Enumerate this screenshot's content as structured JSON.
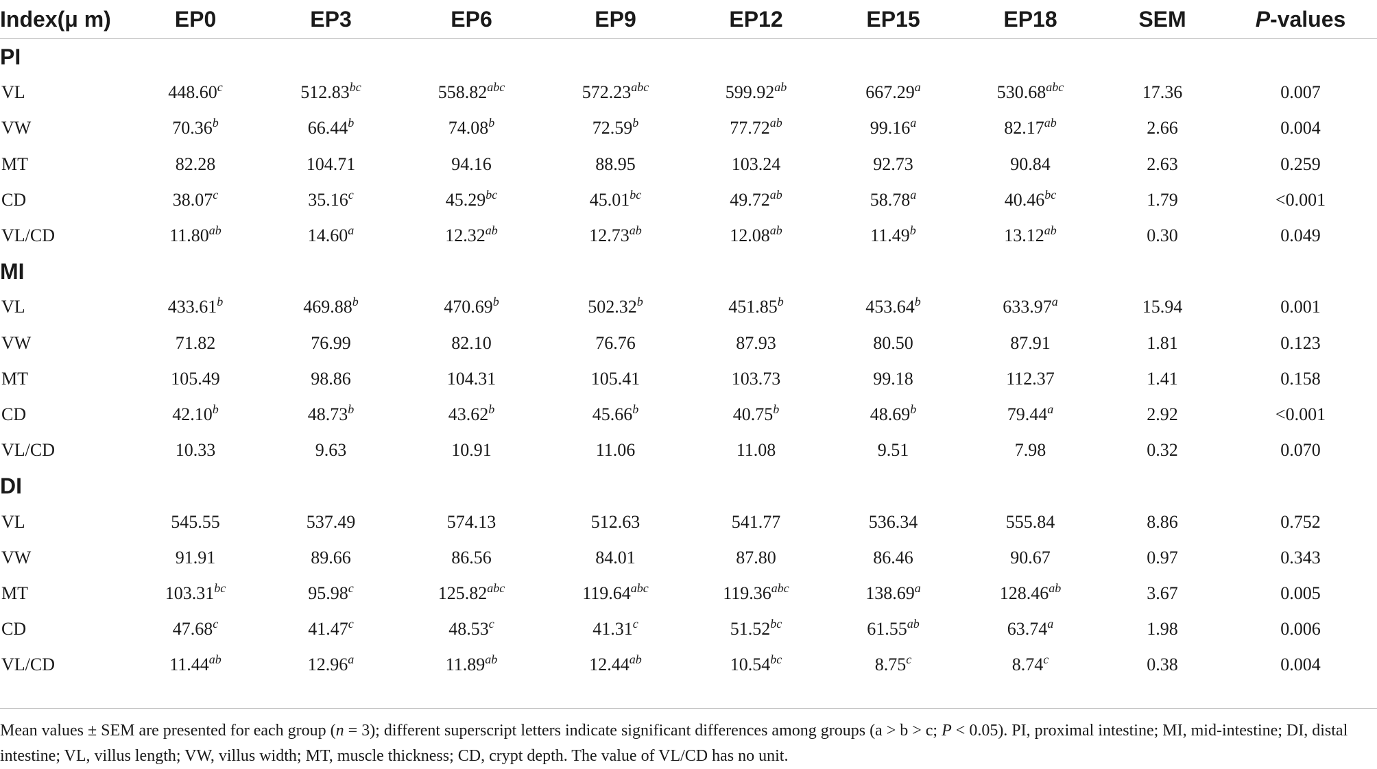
{
  "table": {
    "columns": [
      "Index(μ m)",
      "EP0",
      "EP3",
      "EP6",
      "EP9",
      "EP12",
      "EP15",
      "EP18",
      "SEM",
      "P-values"
    ],
    "sections": [
      {
        "name": "PI",
        "rows": [
          {
            "label": "VL",
            "cells": [
              [
                "448.60",
                "c"
              ],
              [
                "512.83",
                "bc"
              ],
              [
                "558.82",
                "abc"
              ],
              [
                "572.23",
                "abc"
              ],
              [
                "599.92",
                "ab"
              ],
              [
                "667.29",
                "a"
              ],
              [
                "530.68",
                "abc"
              ]
            ],
            "sem": "17.36",
            "p": "0.007"
          },
          {
            "label": "VW",
            "cells": [
              [
                "70.36",
                "b"
              ],
              [
                "66.44",
                "b"
              ],
              [
                "74.08",
                "b"
              ],
              [
                "72.59",
                "b"
              ],
              [
                "77.72",
                "ab"
              ],
              [
                "99.16",
                "a"
              ],
              [
                "82.17",
                "ab"
              ]
            ],
            "sem": "2.66",
            "p": "0.004"
          },
          {
            "label": "MT",
            "cells": [
              [
                "82.28",
                ""
              ],
              [
                "104.71",
                ""
              ],
              [
                "94.16",
                ""
              ],
              [
                "88.95",
                ""
              ],
              [
                "103.24",
                ""
              ],
              [
                "92.73",
                ""
              ],
              [
                "90.84",
                ""
              ]
            ],
            "sem": "2.63",
            "p": "0.259"
          },
          {
            "label": "CD",
            "cells": [
              [
                "38.07",
                "c"
              ],
              [
                "35.16",
                "c"
              ],
              [
                "45.29",
                "bc"
              ],
              [
                "45.01",
                "bc"
              ],
              [
                "49.72",
                "ab"
              ],
              [
                "58.78",
                "a"
              ],
              [
                "40.46",
                "bc"
              ]
            ],
            "sem": "1.79",
            "p": "<0.001"
          },
          {
            "label": "VL/CD",
            "cells": [
              [
                "11.80",
                "ab"
              ],
              [
                "14.60",
                "a"
              ],
              [
                "12.32",
                "ab"
              ],
              [
                "12.73",
                "ab"
              ],
              [
                "12.08",
                "ab"
              ],
              [
                "11.49",
                "b"
              ],
              [
                "13.12",
                "ab"
              ]
            ],
            "sem": "0.30",
            "p": "0.049"
          }
        ]
      },
      {
        "name": "MI",
        "rows": [
          {
            "label": "VL",
            "cells": [
              [
                "433.61",
                "b"
              ],
              [
                "469.88",
                "b"
              ],
              [
                "470.69",
                "b"
              ],
              [
                "502.32",
                "b"
              ],
              [
                "451.85",
                "b"
              ],
              [
                "453.64",
                "b"
              ],
              [
                "633.97",
                "a"
              ]
            ],
            "sem": "15.94",
            "p": "0.001"
          },
          {
            "label": "VW",
            "cells": [
              [
                "71.82",
                ""
              ],
              [
                "76.99",
                ""
              ],
              [
                "82.10",
                ""
              ],
              [
                "76.76",
                ""
              ],
              [
                "87.93",
                ""
              ],
              [
                "80.50",
                ""
              ],
              [
                "87.91",
                ""
              ]
            ],
            "sem": "1.81",
            "p": "0.123"
          },
          {
            "label": "MT",
            "cells": [
              [
                "105.49",
                ""
              ],
              [
                "98.86",
                ""
              ],
              [
                "104.31",
                ""
              ],
              [
                "105.41",
                ""
              ],
              [
                "103.73",
                ""
              ],
              [
                "99.18",
                ""
              ],
              [
                "112.37",
                ""
              ]
            ],
            "sem": "1.41",
            "p": "0.158"
          },
          {
            "label": "CD",
            "cells": [
              [
                "42.10",
                "b"
              ],
              [
                "48.73",
                "b"
              ],
              [
                "43.62",
                "b"
              ],
              [
                "45.66",
                "b"
              ],
              [
                "40.75",
                "b"
              ],
              [
                "48.69",
                "b"
              ],
              [
                "79.44",
                "a"
              ]
            ],
            "sem": "2.92",
            "p": "<0.001"
          },
          {
            "label": "VL/CD",
            "cells": [
              [
                "10.33",
                ""
              ],
              [
                "9.63",
                ""
              ],
              [
                "10.91",
                ""
              ],
              [
                "11.06",
                ""
              ],
              [
                "11.08",
                ""
              ],
              [
                "9.51",
                ""
              ],
              [
                "7.98",
                ""
              ]
            ],
            "sem": "0.32",
            "p": "0.070"
          }
        ]
      },
      {
        "name": "DI",
        "rows": [
          {
            "label": "VL",
            "cells": [
              [
                "545.55",
                ""
              ],
              [
                "537.49",
                ""
              ],
              [
                "574.13",
                ""
              ],
              [
                "512.63",
                ""
              ],
              [
                "541.77",
                ""
              ],
              [
                "536.34",
                ""
              ],
              [
                "555.84",
                ""
              ]
            ],
            "sem": "8.86",
            "p": "0.752"
          },
          {
            "label": "VW",
            "cells": [
              [
                "91.91",
                ""
              ],
              [
                "89.66",
                ""
              ],
              [
                "86.56",
                ""
              ],
              [
                "84.01",
                ""
              ],
              [
                "87.80",
                ""
              ],
              [
                "86.46",
                ""
              ],
              [
                "90.67",
                ""
              ]
            ],
            "sem": "0.97",
            "p": "0.343"
          },
          {
            "label": "MT",
            "cells": [
              [
                "103.31",
                "bc"
              ],
              [
                "95.98",
                "c"
              ],
              [
                "125.82",
                "abc"
              ],
              [
                "119.64",
                "abc"
              ],
              [
                "119.36",
                "abc"
              ],
              [
                "138.69",
                "a"
              ],
              [
                "128.46",
                "ab"
              ]
            ],
            "sem": "3.67",
            "p": "0.005"
          },
          {
            "label": "CD",
            "cells": [
              [
                "47.68",
                "c"
              ],
              [
                "41.47",
                "c"
              ],
              [
                "48.53",
                "c"
              ],
              [
                "41.31",
                "c"
              ],
              [
                "51.52",
                "bc"
              ],
              [
                "61.55",
                "ab"
              ],
              [
                "63.74",
                "a"
              ]
            ],
            "sem": "1.98",
            "p": "0.006"
          },
          {
            "label": "VL/CD",
            "cells": [
              [
                "11.44",
                "ab"
              ],
              [
                "12.96",
                "a"
              ],
              [
                "11.89",
                "ab"
              ],
              [
                "12.44",
                "ab"
              ],
              [
                "10.54",
                "bc"
              ],
              [
                "8.75",
                "c"
              ],
              [
                "8.74",
                "c"
              ]
            ],
            "sem": "0.38",
            "p": "0.004"
          }
        ]
      }
    ]
  },
  "footnote": {
    "part1": "Mean values ± SEM are presented for each group (",
    "n_symbol": "n",
    "part2": " = 3); different superscript letters indicate significant differences among groups (a > b > c; ",
    "p_symbol": "P",
    "part3": " < 0.05). PI, proximal intestine; MI, mid-intestine; DI, distal intestine; VL, villus length; VW, villus width; MT, muscle thickness; CD, crypt depth. The value of VL/CD has no unit."
  }
}
